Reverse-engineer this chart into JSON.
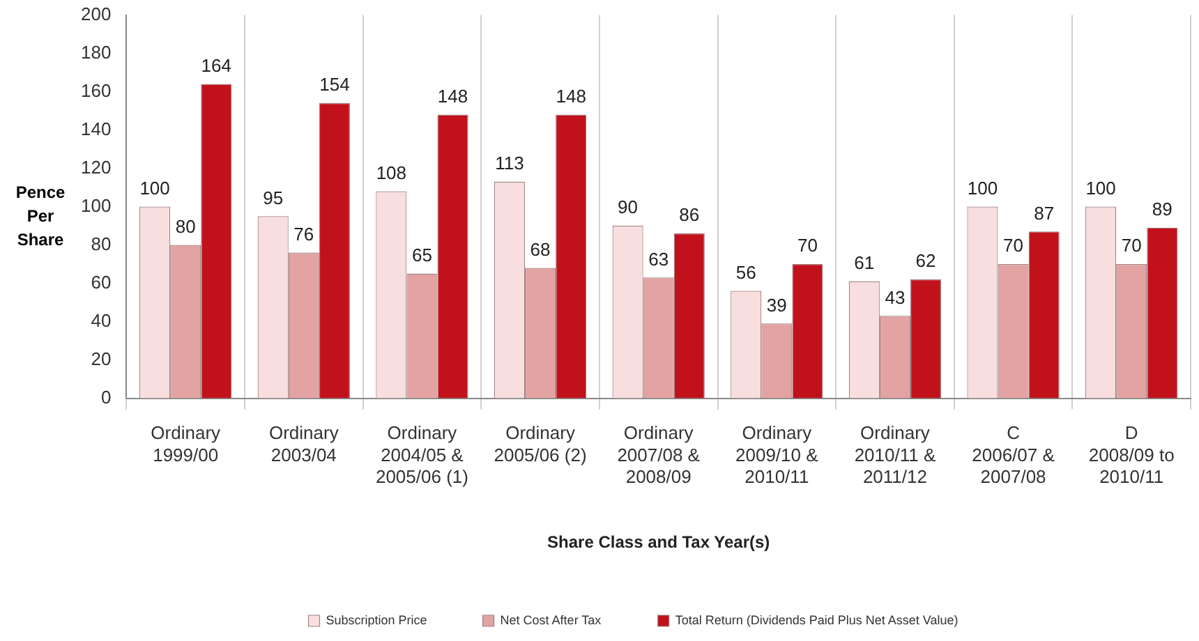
{
  "chart_data": {
    "type": "bar",
    "xlabel": "Share Class and Tax Year(s)",
    "ylabel": "Pence\nPer\nShare",
    "categories": [
      "Ordinary\n1999/00",
      "Ordinary\n2003/04",
      "Ordinary\n2004/05 &\n2005/06 (1)",
      "Ordinary\n2005/06 (2)",
      "Ordinary\n2007/08 &\n2008/09",
      "Ordinary\n2009/10 &\n2010/11",
      "Ordinary\n2010/11 &\n2011/12",
      "C\n2006/07 &\n2007/08",
      "D\n2008/09 to\n2010/11"
    ],
    "series": [
      {
        "name": "Subscription Price",
        "color": "#f8dede",
        "values": [
          100,
          95,
          108,
          113,
          90,
          56,
          61,
          100,
          100
        ]
      },
      {
        "name": "Net Cost After Tax",
        "color": "#e3a3a3",
        "values": [
          80,
          76,
          65,
          68,
          63,
          39,
          43,
          70,
          70
        ]
      },
      {
        "name": "Total Return (Dividends Paid Plus Net Asset Value)",
        "color": "#c1121c",
        "values": [
          164,
          154,
          148,
          148,
          86,
          70,
          62,
          87,
          89
        ]
      }
    ],
    "ylim": [
      0,
      200
    ],
    "yticks": [
      0,
      20,
      40,
      60,
      80,
      100,
      120,
      140,
      160,
      180,
      200
    ],
    "grid": "x",
    "legend": "bottom",
    "data_labels": true
  }
}
